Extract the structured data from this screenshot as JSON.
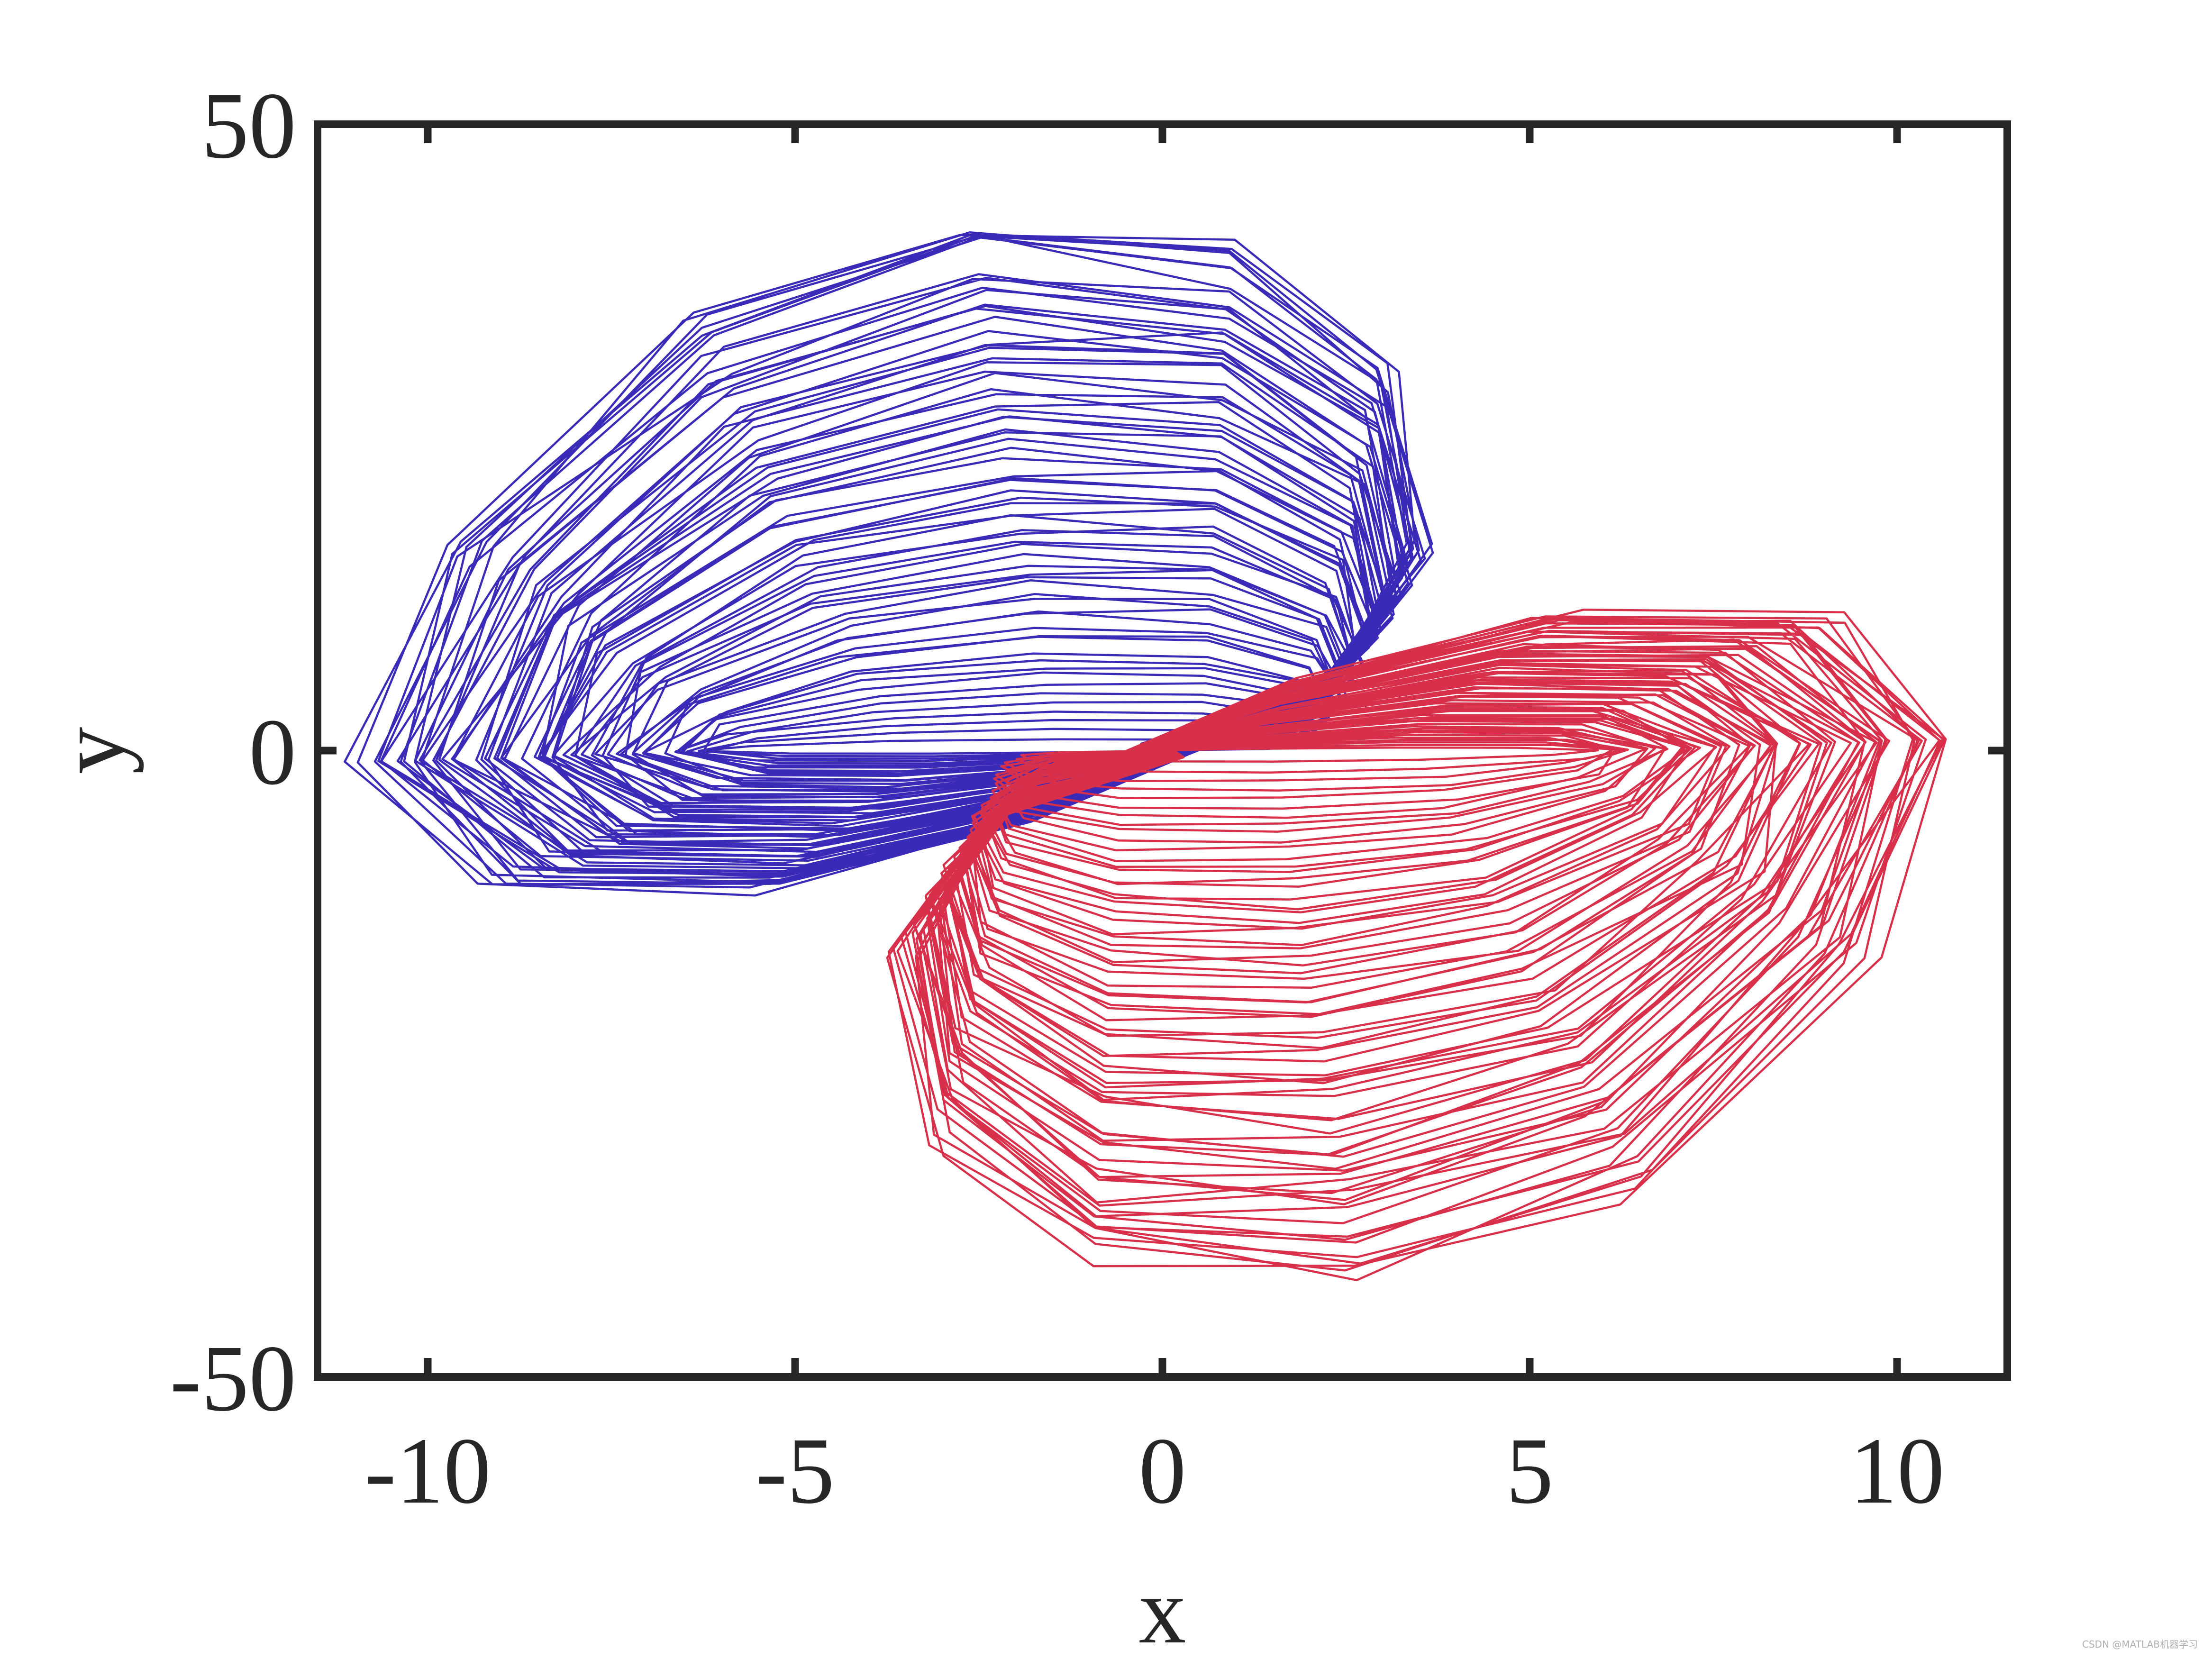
{
  "chart_data": {
    "type": "line",
    "title": "",
    "xlabel": "x",
    "ylabel": "y",
    "xlim": [
      -11.5,
      11.5
    ],
    "ylim": [
      -50,
      50
    ],
    "xticks": [
      -10,
      -5,
      0,
      5,
      10
    ],
    "xtick_labels": [
      "-10",
      "-5",
      "0",
      "5",
      "10"
    ],
    "yticks": [
      -50,
      0,
      50
    ],
    "ytick_labels": [
      "-50",
      "0",
      "50"
    ],
    "grid": false,
    "legend": "none",
    "series": [
      {
        "color": "#3a2ab8",
        "description_of_shape": "upper lobe: nested elliptical loops in the upper-left half, spanning x≈-11.4 to 7, y≈-13 to 45",
        "x": [
          0.5,
          -2.0,
          -5.8,
          -9.5,
          -11.4,
          -10.2,
          -6.9,
          -2.8,
          1.0,
          3.3,
          3.8,
          2.5,
          -0.3
        ],
        "y": [
          0.0,
          -6.2,
          -11.8,
          -11.5,
          -1.0,
          18.0,
          37.0,
          44.8,
          43.5,
          33.0,
          18.0,
          6.0,
          0.6
        ]
      },
      {
        "color": "#d8304a",
        "description_of_shape": "lower lobe: nested elliptical loops in the lower-right half, spanning x≈-7 to 11.5, y≈-46 to 13",
        "x": [
          -0.5,
          2.0,
          5.8,
          9.5,
          11.4,
          10.2,
          6.9,
          2.8,
          -1.0,
          -3.3,
          -3.8,
          -2.5,
          0.3
        ],
        "y": [
          0.0,
          6.2,
          11.8,
          11.5,
          1.0,
          -18.0,
          -37.0,
          -44.8,
          -43.5,
          -33.0,
          -18.0,
          -6.0,
          -0.6
        ]
      }
    ]
  },
  "watermark": "CSDN @MATLAB机器学习"
}
